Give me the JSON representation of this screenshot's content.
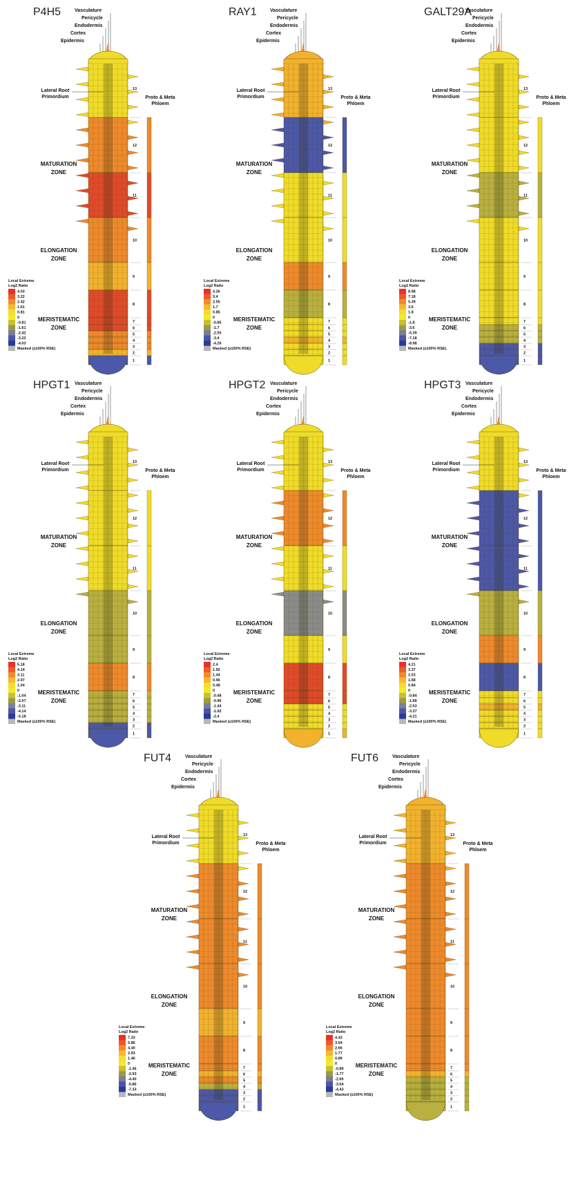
{
  "figure": {
    "labels": {
      "vasculature": "Vasculature",
      "pericycle": "Pericycle",
      "endodermis": "Endodermis",
      "cortex": "Cortex",
      "epidermis": "Epidermis",
      "lateral_root": [
        "Lateral Root",
        "Primordium"
      ],
      "phloem": [
        "Proto & Meta",
        "Phloem"
      ],
      "maturation": [
        "MATURATION",
        "ZONE"
      ],
      "elongation": [
        "ELONGATION",
        "ZONE"
      ],
      "meristematic": [
        "MERISTEMATIC",
        "ZONE"
      ],
      "legend_title": [
        "Local Extreme",
        "Log2 Ratio"
      ],
      "masked": "Masked (≥100% RSE)",
      "sections": [
        13,
        12,
        11,
        10,
        9,
        8,
        7,
        6,
        5,
        4,
        3,
        2,
        1
      ]
    },
    "panels": [
      {
        "gene": "P4H5",
        "legend": [
          "4.03",
          "3.22",
          "2.42",
          "1.61",
          "0.81",
          "0",
          "-0.81",
          "-1.61",
          "-2.42",
          "-3.22",
          "-4.03"
        ]
      },
      {
        "gene": "RAY1",
        "legend": [
          "4.26",
          "3.4",
          "2.55",
          "1.7",
          "0.85",
          "0",
          "-0.85",
          "-1.7",
          "-2.55",
          "-3.4",
          "-4.26"
        ]
      },
      {
        "gene": "GALT29A",
        "legend": [
          "8.98",
          "7.18",
          "5.39",
          "3.6",
          "1.8",
          "0",
          "-1.8",
          "-3.6",
          "-5.39",
          "-7.18",
          "-8.98"
        ]
      },
      {
        "gene": "HPGT1",
        "legend": [
          "5.18",
          "4.14",
          "3.11",
          "2.07",
          "1.04",
          "0",
          "-1.04",
          "-2.07",
          "-3.11",
          "-4.14",
          "-5.18"
        ]
      },
      {
        "gene": "HPGT2",
        "legend": [
          "2.4",
          "1.92",
          "1.44",
          "0.96",
          "0.48",
          "0",
          "-0.48",
          "-0.96",
          "-1.44",
          "-1.92",
          "-2.4"
        ]
      },
      {
        "gene": "HPGT3",
        "legend": [
          "4.21",
          "3.37",
          "2.53",
          "1.68",
          "0.84",
          "0",
          "-0.84",
          "-1.68",
          "-2.53",
          "-3.37",
          "-4.21"
        ]
      },
      {
        "gene": "FUT4",
        "legend": [
          "7.33",
          "5.86",
          "4.40",
          "2.93",
          "1.46",
          "0",
          "-1.46",
          "-2.93",
          "-4.40",
          "-5.86",
          "-7.33"
        ]
      },
      {
        "gene": "FUT6",
        "legend": [
          "4.43",
          "3.54",
          "2.66",
          "1.77",
          "0.89",
          "0",
          "-0.89",
          "-1.77",
          "-2.66",
          "-3.54",
          "-4.43"
        ]
      }
    ]
  }
}
